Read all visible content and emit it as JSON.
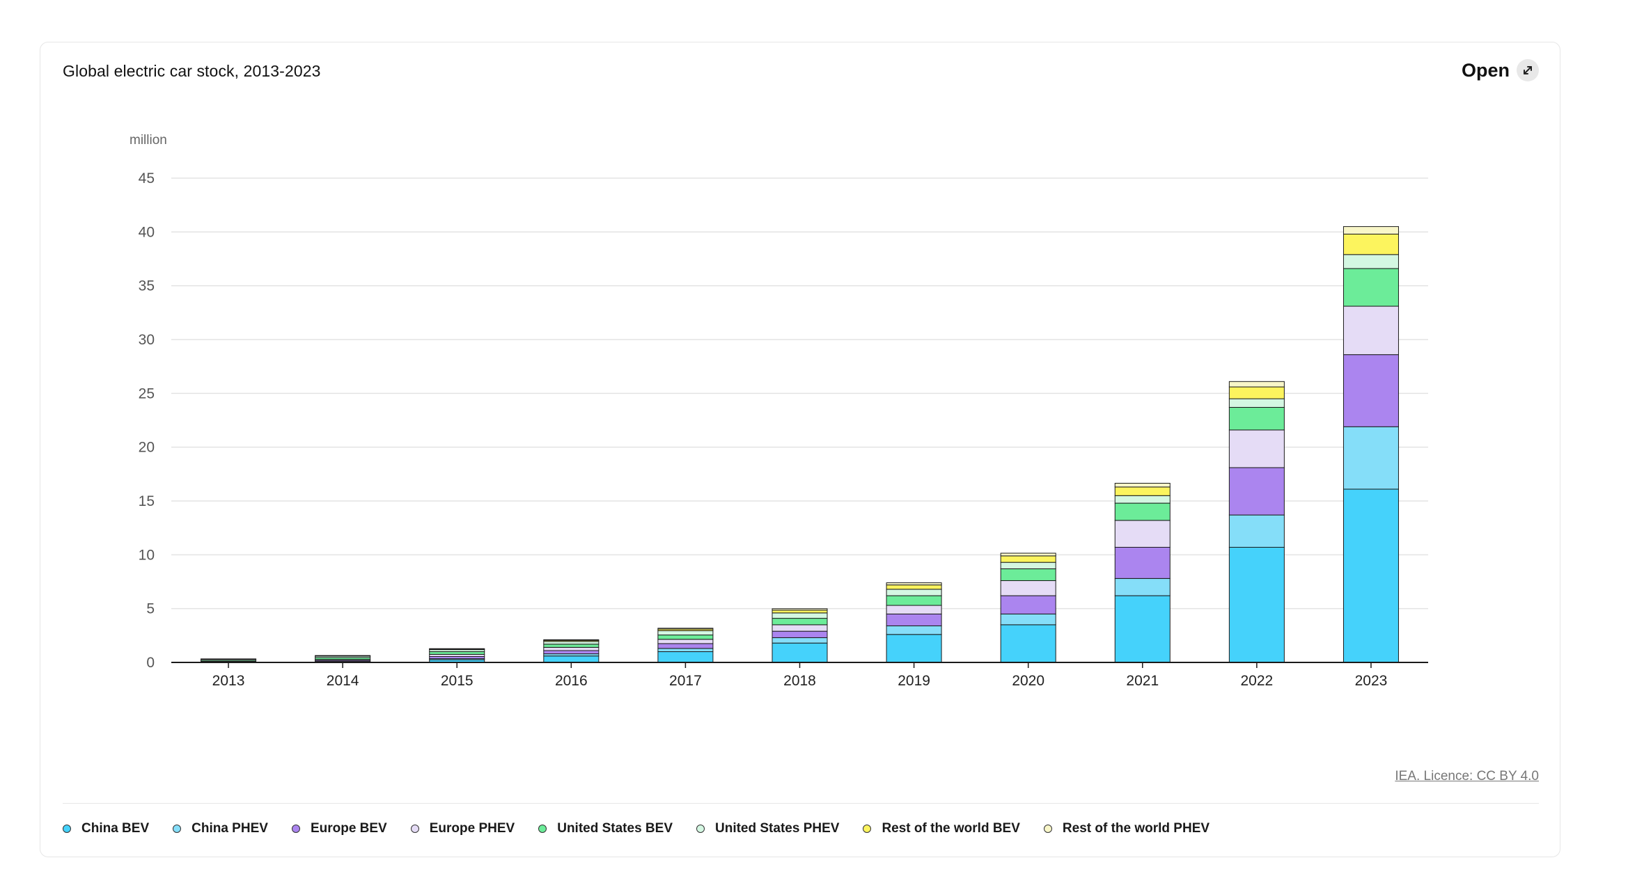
{
  "header": {
    "title": "Global electric car stock, 2013-2023",
    "open_label": "Open",
    "open_icon": "expand-icon"
  },
  "source": {
    "text": "IEA. Licence: CC BY 4.0"
  },
  "chart_data": {
    "type": "bar",
    "stacked": true,
    "title": "Global electric car stock, 2013-2023",
    "ylabel": "million",
    "xlabel": "",
    "ylim": [
      0,
      45
    ],
    "yticks": [
      0,
      5,
      10,
      15,
      20,
      25,
      30,
      35,
      40,
      45
    ],
    "grid": true,
    "legend_position": "bottom",
    "categories": [
      "2013",
      "2014",
      "2015",
      "2016",
      "2017",
      "2018",
      "2019",
      "2020",
      "2021",
      "2022",
      "2023"
    ],
    "series": [
      {
        "name": "China BEV",
        "color": "#45d2fb",
        "values": [
          0.02,
          0.06,
          0.25,
          0.6,
          1.0,
          1.8,
          2.6,
          3.5,
          6.2,
          10.7,
          16.1
        ]
      },
      {
        "name": "China PHEV",
        "color": "#85def9",
        "values": [
          0.01,
          0.03,
          0.1,
          0.2,
          0.3,
          0.5,
          0.8,
          1.0,
          1.6,
          3.0,
          5.8
        ]
      },
      {
        "name": "Europe BEV",
        "color": "#ab85ef",
        "values": [
          0.04,
          0.1,
          0.2,
          0.3,
          0.45,
          0.6,
          1.1,
          1.7,
          2.9,
          4.4,
          6.7
        ]
      },
      {
        "name": "Europe PHEV",
        "color": "#e5dcf6",
        "values": [
          0.03,
          0.08,
          0.2,
          0.3,
          0.4,
          0.6,
          0.8,
          1.4,
          2.5,
          3.5,
          4.5
        ]
      },
      {
        "name": "United States BEV",
        "color": "#6cec99",
        "values": [
          0.1,
          0.18,
          0.25,
          0.3,
          0.4,
          0.6,
          0.9,
          1.1,
          1.6,
          2.1,
          3.5
        ]
      },
      {
        "name": "United States PHEV",
        "color": "#d4f7e2",
        "values": [
          0.1,
          0.14,
          0.19,
          0.25,
          0.4,
          0.5,
          0.6,
          0.6,
          0.7,
          0.8,
          1.3
        ]
      },
      {
        "name": "Rest of the world BEV",
        "color": "#fcf45e",
        "values": [
          0.02,
          0.03,
          0.05,
          0.1,
          0.15,
          0.25,
          0.4,
          0.6,
          0.8,
          1.1,
          1.9
        ]
      },
      {
        "name": "Rest of the world PHEV",
        "color": "#f8f6c8",
        "values": [
          0.01,
          0.02,
          0.04,
          0.06,
          0.08,
          0.14,
          0.2,
          0.25,
          0.35,
          0.5,
          0.7
        ]
      }
    ]
  }
}
